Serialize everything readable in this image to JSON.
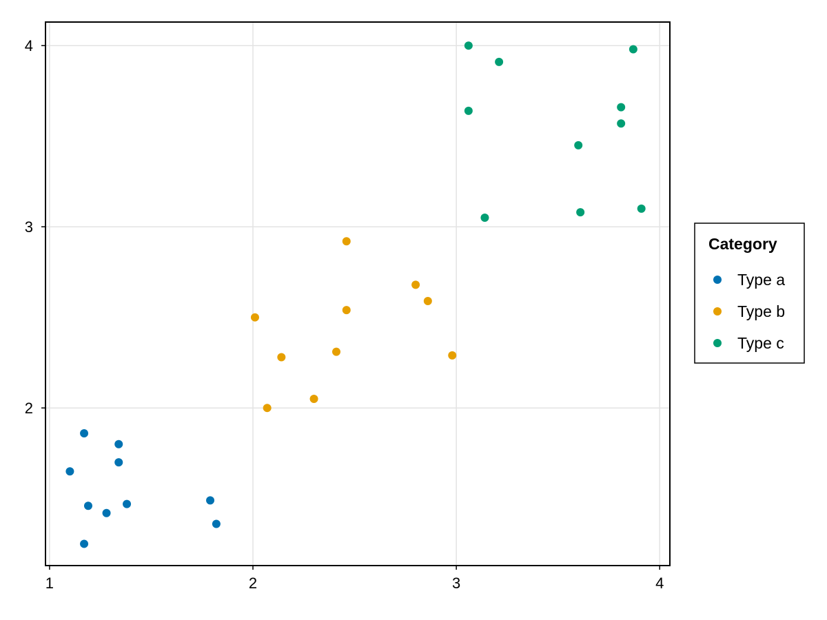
{
  "chart_data": {
    "type": "scatter",
    "title": "",
    "xlabel": "",
    "ylabel": "",
    "xlim": [
      0.98,
      4.05
    ],
    "ylim": [
      1.13,
      4.13
    ],
    "xticks": [
      1,
      2,
      3,
      4
    ],
    "yticks": [
      2,
      3,
      4
    ],
    "xtick_labels": [
      "1",
      "2",
      "3",
      "4"
    ],
    "ytick_labels": [
      "2",
      "3",
      "4"
    ],
    "grid": true,
    "legend": {
      "title": "Category",
      "placement": "right"
    },
    "series": [
      {
        "name": "Type a",
        "color": "#0072b2",
        "points": [
          [
            1.1,
            1.65
          ],
          [
            1.17,
            1.86
          ],
          [
            1.34,
            1.8
          ],
          [
            1.34,
            1.7
          ],
          [
            1.19,
            1.46
          ],
          [
            1.28,
            1.42
          ],
          [
            1.38,
            1.47
          ],
          [
            1.17,
            1.25
          ],
          [
            1.79,
            1.49
          ],
          [
            1.82,
            1.36
          ]
        ]
      },
      {
        "name": "Type b",
        "color": "#e69f00",
        "points": [
          [
            2.46,
            2.92
          ],
          [
            2.01,
            2.5
          ],
          [
            2.8,
            2.68
          ],
          [
            2.86,
            2.59
          ],
          [
            2.46,
            2.54
          ],
          [
            2.14,
            2.28
          ],
          [
            2.41,
            2.31
          ],
          [
            2.98,
            2.29
          ],
          [
            2.3,
            2.05
          ],
          [
            2.07,
            2.0
          ]
        ]
      },
      {
        "name": "Type c",
        "color": "#009e73",
        "points": [
          [
            3.06,
            4.0
          ],
          [
            3.21,
            3.91
          ],
          [
            3.87,
            3.98
          ],
          [
            3.06,
            3.64
          ],
          [
            3.81,
            3.66
          ],
          [
            3.81,
            3.57
          ],
          [
            3.6,
            3.45
          ],
          [
            3.61,
            3.08
          ],
          [
            3.91,
            3.1
          ],
          [
            3.14,
            3.05
          ]
        ]
      }
    ]
  }
}
